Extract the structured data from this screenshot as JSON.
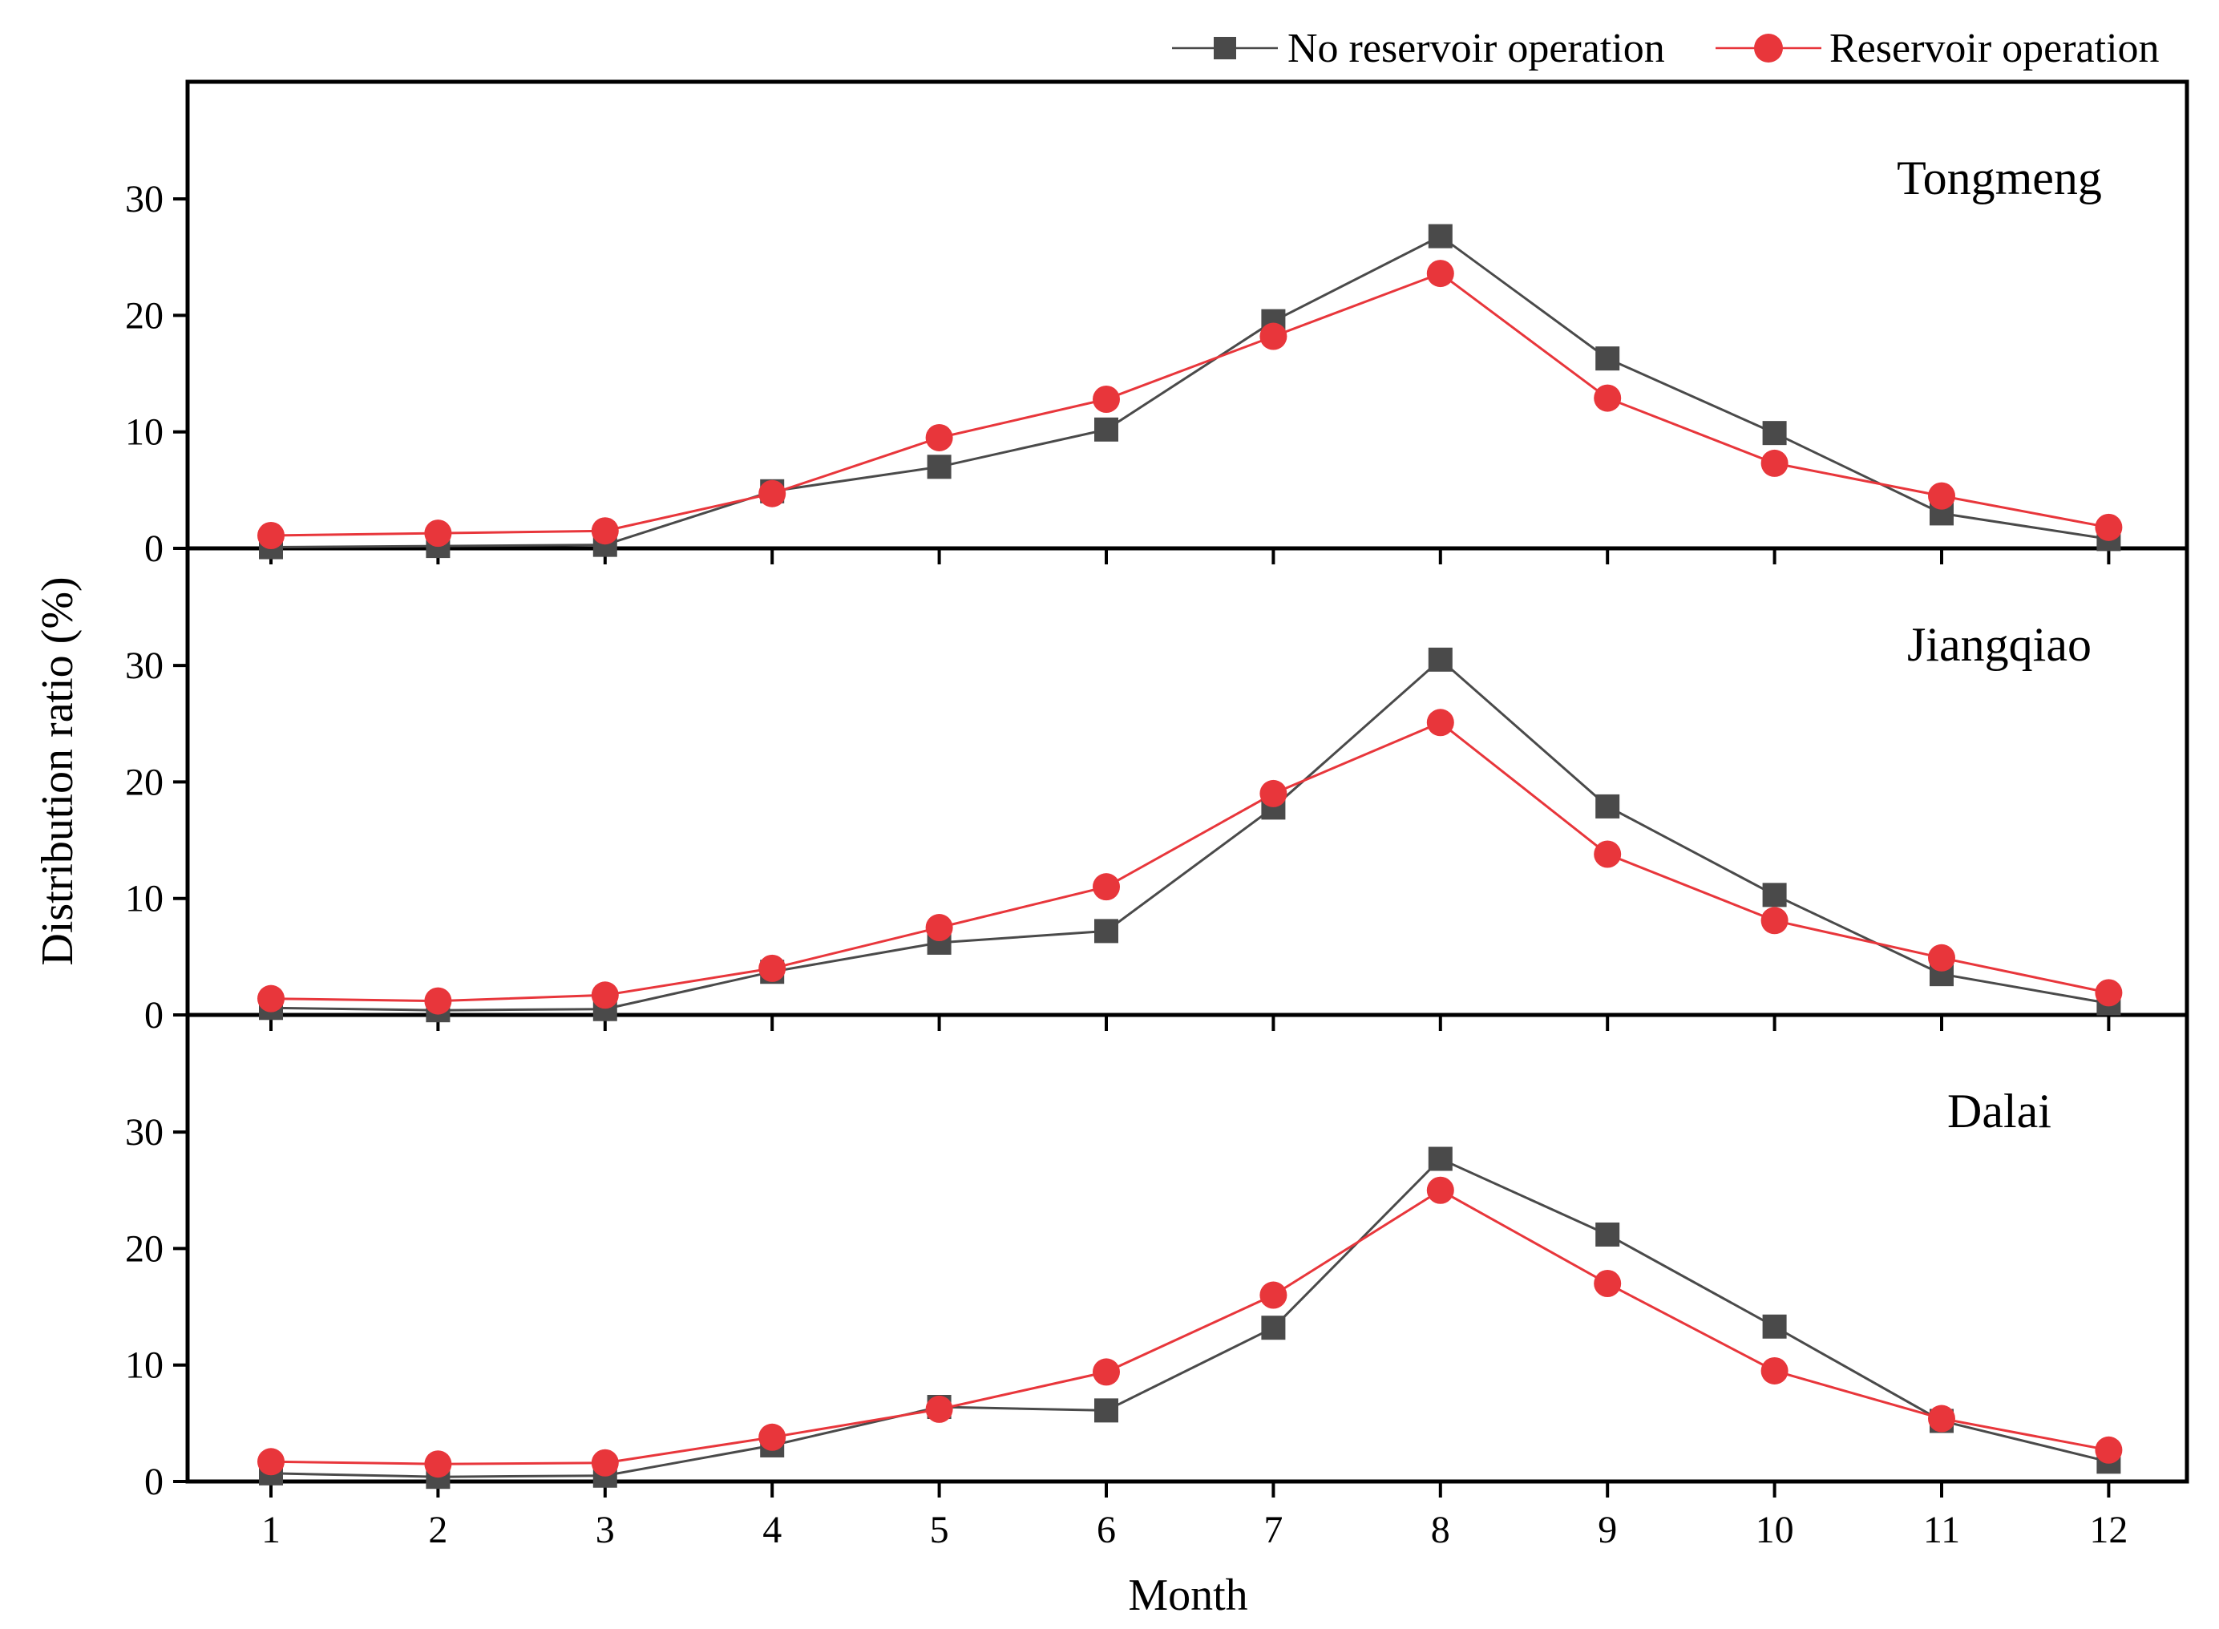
{
  "chart_data": {
    "type": "line",
    "xlabel": "Month",
    "ylabel": "Distribution ratio (%)",
    "ylim": [
      0,
      40
    ],
    "yticks": [
      0,
      10,
      20,
      30
    ],
    "categories": [
      "1",
      "2",
      "3",
      "4",
      "5",
      "6",
      "7",
      "8",
      "9",
      "10",
      "11",
      "12"
    ],
    "grid": false,
    "legend_position": "top-right",
    "legend": [
      {
        "name": "No reservoir operation",
        "marker": "square",
        "color": "#4a4a4a"
      },
      {
        "name": "Reservoir operation",
        "marker": "circle",
        "color": "#e8363b"
      }
    ],
    "panels": [
      {
        "label": "Tongmeng",
        "series": [
          {
            "name": "No reservoir operation",
            "values": [
              0.1,
              0.2,
              0.3,
              4.9,
              7.0,
              10.2,
              19.5,
              26.8,
              16.3,
              9.9,
              3.0,
              0.8
            ]
          },
          {
            "name": "Reservoir operation",
            "values": [
              1.1,
              1.3,
              1.5,
              4.7,
              9.5,
              12.8,
              18.2,
              23.6,
              12.9,
              7.3,
              4.5,
              1.8
            ]
          }
        ]
      },
      {
        "label": "Jiangqiao",
        "series": [
          {
            "name": "No reservoir operation",
            "values": [
              0.6,
              0.4,
              0.5,
              3.7,
              6.2,
              7.2,
              17.8,
              30.5,
              17.9,
              10.3,
              3.5,
              1.0
            ]
          },
          {
            "name": "Reservoir operation",
            "values": [
              1.4,
              1.2,
              1.7,
              4.0,
              7.5,
              11.0,
              19.0,
              25.1,
              13.8,
              8.1,
              4.9,
              1.9
            ]
          }
        ]
      },
      {
        "label": "Dalai",
        "series": [
          {
            "name": "No reservoir operation",
            "values": [
              0.7,
              0.4,
              0.5,
              3.1,
              6.4,
              6.1,
              13.2,
              27.7,
              21.2,
              13.3,
              5.2,
              1.7
            ]
          },
          {
            "name": "Reservoir operation",
            "values": [
              1.7,
              1.5,
              1.6,
              3.8,
              6.2,
              9.4,
              16.0,
              25.0,
              17.0,
              9.5,
              5.4,
              2.7
            ]
          }
        ]
      }
    ]
  }
}
